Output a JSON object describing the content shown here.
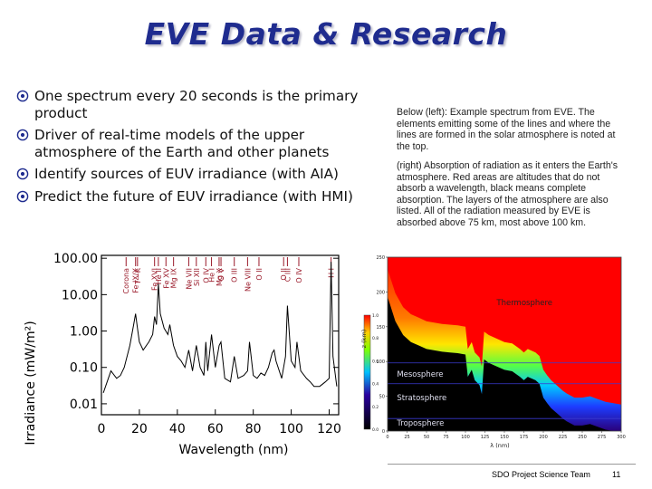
{
  "slide": {
    "title": "EVE Data & Research",
    "bullets": [
      "One spectrum every 20 seconds is the primary product",
      "Driver of real-time models of the upper atmosphere of the Earth and other planets",
      "Identify sources of EUV irradiance (with AIA)",
      "Predict the future of EUV irradiance (with HMI)"
    ],
    "bullet_icon": "circled-dot-icon",
    "note_left": "Below (left): Example spectrum from EVE. The elements emitting some of the lines and where the lines are formed in the solar atmosphere is noted at the top.",
    "note_right": "(right) Absorption of radiation as it enters the Earth's atmosphere. Red areas are altitudes that do not absorb a wavelength, black means complete absorption. The layers of the atmosphere are also listed. All of the radiation measured by EVE is absorbed above 75 km, most above 100 km.",
    "footer": {
      "team": "SDO Project Science Team",
      "page": "11"
    },
    "colors": {
      "title": "#1f2c8f",
      "line_labels": "#9a1a2a"
    }
  },
  "chart_data": [
    {
      "type": "line",
      "title": "",
      "xlabel": "Wavelength (nm)",
      "ylabel": "Irradiance (mW/m²)",
      "xlim": [
        0,
        125
      ],
      "ylim": [
        0.005,
        120
      ],
      "y_scale": "log",
      "x_ticks": [
        "0",
        "20",
        "40",
        "60",
        "80",
        "100",
        "120"
      ],
      "y_ticks": [
        "100.00",
        "10.00",
        "1.00",
        "0.10",
        "0.01"
      ],
      "line_labels": [
        {
          "text": "Corona",
          "x": 13
        },
        {
          "text": "T—K",
          "x": 19
        },
        {
          "text": "Fe IX/X",
          "x": 18
        },
        {
          "text": "Fe XVI",
          "x": 28
        },
        {
          "text": "He II",
          "x": 30
        },
        {
          "text": "Fe XV",
          "x": 34
        },
        {
          "text": "Mg IX",
          "x": 38
        },
        {
          "text": "Ne VII",
          "x": 46
        },
        {
          "text": "Si XII",
          "x": 50
        },
        {
          "text": "O IV",
          "x": 55
        },
        {
          "text": "Mg X",
          "x": 62
        },
        {
          "text": "O V",
          "x": 63
        },
        {
          "text": "He I",
          "x": 58
        },
        {
          "text": "O III",
          "x": 70
        },
        {
          "text": "Ne VIII",
          "x": 77
        },
        {
          "text": "O II",
          "x": 83
        },
        {
          "text": "O II",
          "x": 96
        },
        {
          "text": "O IV",
          "x": 104
        },
        {
          "text": "C III",
          "x": 98
        },
        {
          "text": "H I",
          "x": 121
        }
      ],
      "series": [
        {
          "x": [
            1,
            3,
            5,
            8,
            10,
            12,
            14,
            15,
            17,
            18,
            19,
            20,
            22,
            25,
            27,
            28,
            29,
            30,
            31,
            33,
            35,
            36,
            38,
            40,
            42,
            44,
            46,
            48,
            50,
            52,
            54,
            55,
            56,
            58,
            60,
            62,
            63,
            65,
            68,
            70,
            72,
            75,
            77,
            78,
            80,
            82,
            84,
            86,
            88,
            90,
            91,
            92,
            95,
            97,
            98,
            100,
            102,
            103,
            105,
            108,
            110,
            112,
            115,
            118,
            120,
            121,
            122,
            124
          ],
          "y": [
            0.02,
            0.04,
            0.08,
            0.05,
            0.06,
            0.1,
            0.25,
            0.4,
            1.5,
            3,
            1.2,
            0.5,
            0.3,
            0.5,
            0.8,
            2.5,
            1.5,
            20,
            3,
            1.2,
            0.8,
            1.5,
            0.4,
            0.2,
            0.15,
            0.1,
            0.3,
            0.08,
            0.4,
            0.1,
            0.06,
            0.5,
            0.08,
            0.8,
            0.1,
            0.4,
            0.5,
            0.05,
            0.04,
            0.2,
            0.05,
            0.06,
            0.08,
            0.5,
            0.06,
            0.05,
            0.07,
            0.06,
            0.1,
            0.25,
            0.3,
            0.15,
            0.05,
            0.2,
            5,
            0.15,
            0.1,
            0.5,
            0.08,
            0.05,
            0.04,
            0.03,
            0.03,
            0.04,
            0.05,
            80,
            0.2,
            0.03
          ]
        }
      ]
    },
    {
      "type": "heatmap",
      "title": "",
      "xlabel": "λ (nm)",
      "ylabel": "z (km)",
      "xlim": [
        0,
        300
      ],
      "ylim": [
        0,
        250
      ],
      "x_ticks": [
        "0",
        "25",
        "50",
        "75",
        "100",
        "125",
        "150",
        "175",
        "200",
        "225",
        "250",
        "275",
        "300"
      ],
      "y_ticks": [
        "0",
        "50",
        "100",
        "150",
        "200",
        "250"
      ],
      "layers": [
        "Thermosphere",
        "Mesosphere",
        "Stratosphere",
        "Troposphere"
      ],
      "colorbar_ticks": [
        "0.0",
        "0.2",
        "0.4",
        "0.6",
        "0.8",
        "1.0"
      ],
      "absorption_profile": {
        "x": [
          0,
          10,
          20,
          30,
          40,
          50,
          60,
          70,
          80,
          90,
          100,
          103,
          108,
          112,
          118,
          121,
          124,
          130,
          140,
          150,
          160,
          170,
          175,
          180,
          190,
          195,
          200,
          205,
          210,
          215,
          220,
          225,
          230,
          240,
          250,
          260,
          270,
          280,
          290,
          300
        ],
        "z": [
          215,
          180,
          160,
          150,
          145,
          140,
          138,
          136,
          135,
          134,
          132,
          100,
          110,
          95,
          88,
          75,
          125,
          120,
          115,
          110,
          108,
          100,
          95,
          100,
          95,
          90,
          70,
          62,
          55,
          50,
          45,
          40,
          36,
          30,
          30,
          32,
          28,
          24,
          22,
          20
        ]
      }
    }
  ]
}
